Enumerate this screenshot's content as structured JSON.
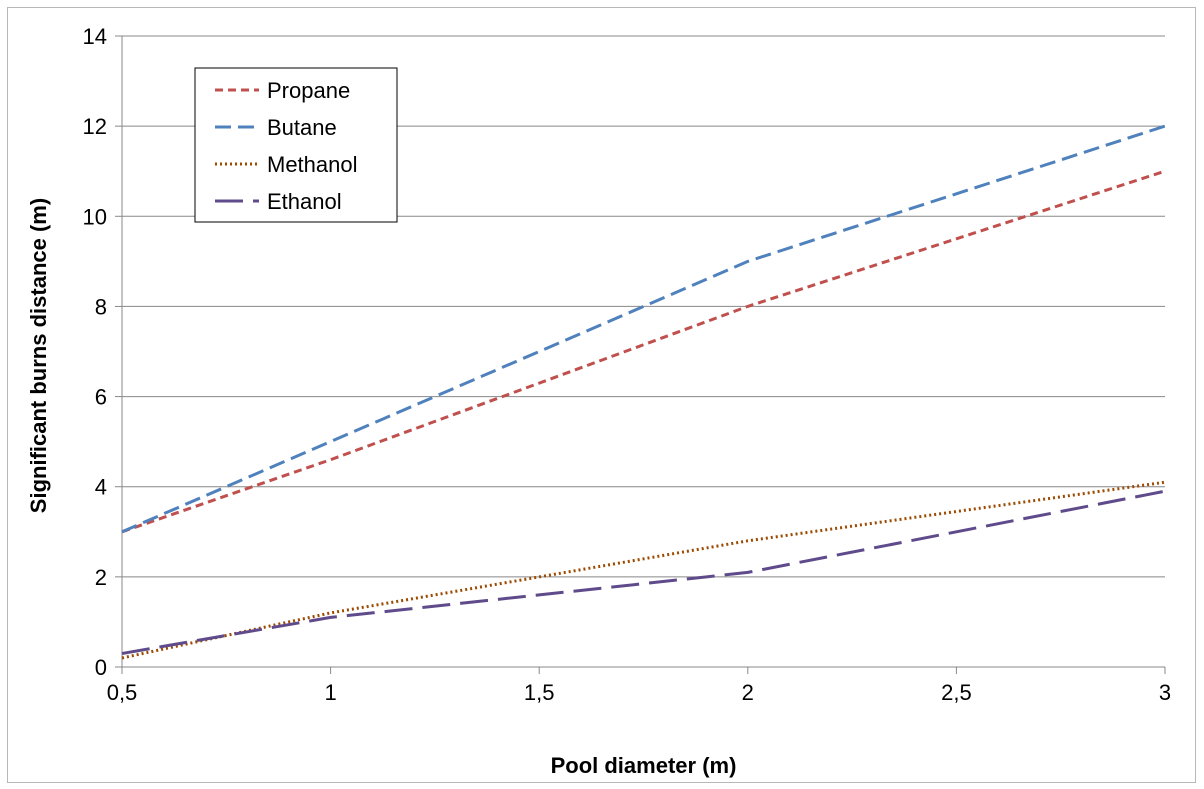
{
  "chart_data": {
    "type": "line",
    "title": "",
    "xlabel": "Pool diameter (m)",
    "ylabel": "Significant burns distance (m)",
    "xlim": [
      0.5,
      3
    ],
    "ylim": [
      0,
      14
    ],
    "x_ticks": [
      0.5,
      1,
      1.5,
      2,
      2.5,
      3
    ],
    "x_tick_labels": [
      "0,5",
      "1",
      "1,5",
      "2",
      "2,5",
      "3"
    ],
    "y_ticks": [
      0,
      2,
      4,
      6,
      8,
      10,
      12,
      14
    ],
    "y_tick_labels": [
      "0",
      "2",
      "4",
      "6",
      "8",
      "10",
      "12",
      "14"
    ],
    "grid": "horizontal",
    "legend_position": "top-left",
    "series": [
      {
        "name": "Propane",
        "color": "#c0504d",
        "dash": "short-dash",
        "x": [
          0.5,
          1,
          1.5,
          2,
          2.5,
          3
        ],
        "y": [
          3,
          4.6,
          6.3,
          8,
          9.5,
          11
        ]
      },
      {
        "name": "Butane",
        "color": "#4f81bd",
        "dash": "dash",
        "x": [
          0.5,
          1,
          1.5,
          2,
          2.5,
          3
        ],
        "y": [
          3,
          5,
          7,
          9,
          10.5,
          12
        ]
      },
      {
        "name": "Methanol",
        "color": "#9c4a00",
        "dash": "dot",
        "x": [
          0.5,
          1,
          1.5,
          2,
          2.5,
          3
        ],
        "y": [
          0.2,
          1.2,
          2,
          2.8,
          3.45,
          4.1
        ]
      },
      {
        "name": "Ethanol",
        "color": "#5f4b8b",
        "dash": "long-dash",
        "x": [
          0.5,
          1,
          1.5,
          2,
          2.5,
          3
        ],
        "y": [
          0.3,
          1.1,
          1.6,
          2.1,
          3,
          3.9
        ]
      }
    ]
  }
}
